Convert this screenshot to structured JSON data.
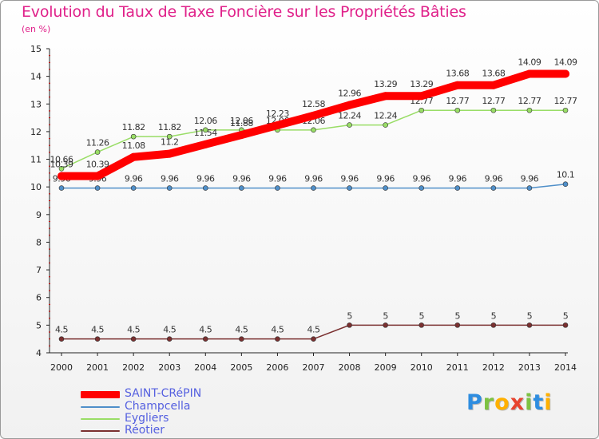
{
  "title": "Evolution du Taux de Taxe Foncière sur les Propriétés Bâties",
  "unit": "(en %)",
  "logo": {
    "text": "Proxiti",
    "letters": [
      "P",
      "r",
      "o",
      "x",
      "i",
      "t",
      "i"
    ],
    "colors": [
      "#2e8de0",
      "#7dc242",
      "#ffb000",
      "#e8442f",
      "#7dc242",
      "#2e8de0",
      "#ffb000"
    ]
  },
  "chart_data": {
    "type": "line",
    "title": "Evolution du Taux de Taxe Foncière sur les Propriétés Bâties",
    "ylabel": "(en %)",
    "xlabel": "",
    "ylim": [
      4,
      15
    ],
    "y_ticks": [
      4,
      5,
      6,
      7,
      8,
      9,
      10,
      11,
      12,
      13,
      14,
      15
    ],
    "categories": [
      "2000",
      "2001",
      "2002",
      "2003",
      "2004",
      "2005",
      "2006",
      "2007",
      "2008",
      "2009",
      "2010",
      "2011",
      "2012",
      "2013",
      "2014"
    ],
    "series": [
      {
        "name": "SAINT-CRéPIN",
        "color": "#ff0000",
        "values": [
          10.39,
          10.39,
          11.08,
          11.2,
          11.54,
          11.88,
          12.23,
          12.58,
          12.96,
          13.29,
          13.29,
          13.68,
          13.68,
          14.09,
          14.09
        ],
        "labels": [
          "10.39",
          "10.39",
          "11.08",
          "11.2",
          "11.54",
          "11.88",
          "12.23",
          "12.58",
          "12.96",
          "13.29",
          "13.29",
          "13.68",
          "13.68",
          "14.09",
          "14.09"
        ]
      },
      {
        "name": "Champcella",
        "color": "#4f8fc9",
        "values": [
          9.96,
          9.96,
          9.96,
          9.96,
          9.96,
          9.96,
          9.96,
          9.96,
          9.96,
          9.96,
          9.96,
          9.96,
          9.96,
          9.96,
          10.1
        ],
        "labels": [
          "9.96",
          "9.96",
          "9.96",
          "9.96",
          "9.96",
          "9.96",
          "9.96",
          "9.96",
          "9.96",
          "9.96",
          "9.96",
          "9.96",
          "9.96",
          "9.96",
          "10.1"
        ]
      },
      {
        "name": "Eygliers",
        "color": "#99dd66",
        "values": [
          10.66,
          11.26,
          11.82,
          11.82,
          12.06,
          12.06,
          12.06,
          12.06,
          12.24,
          12.24,
          12.77,
          12.77,
          12.77,
          12.77,
          12.77
        ],
        "labels": [
          "10.66",
          "11.26",
          "11.82",
          "11.82",
          "12.06",
          "12.06",
          "12.06",
          "12.06",
          "12.24",
          "12.24",
          "12.77",
          "12.77",
          "12.77",
          "12.77",
          "12.77"
        ]
      },
      {
        "name": "Réotier",
        "color": "#7a3030",
        "values": [
          4.5,
          4.5,
          4.5,
          4.5,
          4.5,
          4.5,
          4.5,
          4.5,
          5,
          5,
          5,
          5,
          5,
          5,
          5
        ],
        "labels": [
          "4.5",
          "4.5",
          "4.5",
          "4.5",
          "4.5",
          "4.5",
          "4.5",
          "4.5",
          "5",
          "5",
          "5",
          "5",
          "5",
          "5",
          "5"
        ]
      }
    ],
    "legend": [
      "SAINT-CRéPIN",
      "Champcella",
      "Eygliers",
      "Réotier"
    ],
    "legend_position": "bottom-left",
    "grid": false
  }
}
